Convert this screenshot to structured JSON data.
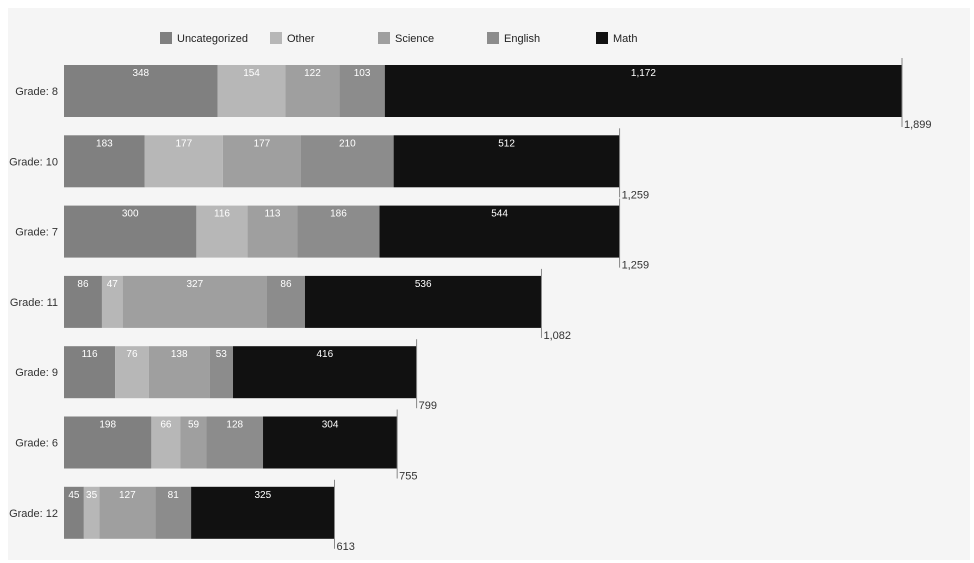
{
  "chart_data": {
    "type": "bar",
    "orientation": "horizontal",
    "stacked": true,
    "title": "",
    "xlabel": "",
    "ylabel": "",
    "xlim": [
      0,
      1899
    ],
    "grid": false,
    "legend_position": "top",
    "categories": [
      "Grade: 8",
      "Grade: 10",
      "Grade: 7",
      "Grade: 11",
      "Grade: 9",
      "Grade: 6",
      "Grade: 12"
    ],
    "series": [
      {
        "name": "Uncategorized",
        "color": "#808080",
        "values": [
          348,
          183,
          300,
          86,
          116,
          198,
          45
        ],
        "labels": [
          "348",
          "183",
          "300",
          "86",
          "116",
          "198",
          "45"
        ]
      },
      {
        "name": "Other",
        "color": "#b7b7b7",
        "values": [
          154,
          177,
          116,
          47,
          76,
          66,
          35
        ],
        "labels": [
          "154",
          "177",
          "116",
          "47",
          "76",
          "66",
          "35"
        ]
      },
      {
        "name": "Science",
        "color": "#9f9f9f",
        "values": [
          122,
          177,
          113,
          327,
          138,
          59,
          127
        ],
        "labels": [
          "122",
          "177",
          "113",
          "327",
          "138",
          "59",
          "127"
        ]
      },
      {
        "name": "English",
        "color": "#8c8c8c",
        "values": [
          103,
          210,
          186,
          86,
          53,
          128,
          81
        ],
        "labels": [
          "103",
          "210",
          "186",
          "86",
          "53",
          "128",
          "81"
        ]
      },
      {
        "name": "Math",
        "color": "#111111",
        "values": [
          1172,
          512,
          544,
          536,
          416,
          304,
          325
        ],
        "labels": [
          "1,172",
          "512",
          "544",
          "536",
          "416",
          "304",
          "325"
        ]
      }
    ],
    "totals": [
      1899,
      1259,
      1259,
      1082,
      799,
      755,
      613
    ],
    "total_labels": [
      "1,899",
      "1,259",
      "1,259",
      "1,082",
      "799",
      "755",
      "613"
    ]
  }
}
